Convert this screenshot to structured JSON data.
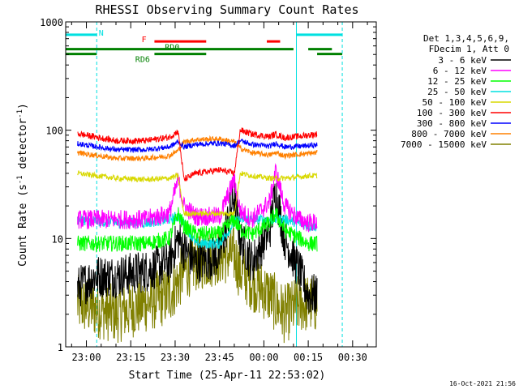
{
  "chart_data": {
    "type": "line",
    "title": "RHESSI Observing Summary Count Rates",
    "xlabel": "Start Time (25-Apr-11 22:53:02)",
    "ylabel_parts": [
      "Count Rate (s",
      "-1",
      " detector",
      "-1",
      ")"
    ],
    "yscale": "log",
    "ylim": [
      1,
      1000
    ],
    "xlim_min": [
      -7,
      98
    ],
    "y_ticks": [
      {
        "value": 1,
        "label": "1"
      },
      {
        "value": 10,
        "label": "10"
      },
      {
        "value": 100,
        "label": "100"
      },
      {
        "value": 1000,
        "label": "1000"
      }
    ],
    "x_ticks": [
      {
        "value": 0,
        "label": "23:00"
      },
      {
        "value": 15,
        "label": "23:15"
      },
      {
        "value": 30,
        "label": "23:30"
      },
      {
        "value": 45,
        "label": "23:45"
      },
      {
        "value": 60,
        "label": "00:00"
      },
      {
        "value": 75,
        "label": "00:15"
      },
      {
        "value": 90,
        "label": "00:30"
      }
    ],
    "time_axis_note": "x values are minutes after 23:00",
    "legend_header": [
      "Det 1,3,4,5,6,9,",
      "FDecim 1, Att 0"
    ],
    "legend_placement": "right, outside plot",
    "timestamp": "16-Oct-2021 21:56",
    "data_gap_lines": [
      -7,
      3.5,
      71,
      86.5
    ],
    "flag_bars": [
      {
        "name": "N",
        "color": "#00e0e0",
        "level": 760,
        "segments": [
          [
            -7,
            3.5
          ],
          [
            71,
            86.5
          ]
        ],
        "label_at": 5
      },
      {
        "name": "F",
        "color": "#ff0000",
        "level": 660,
        "segments": [
          [
            23,
            40.5
          ],
          [
            61,
            65.5
          ]
        ],
        "label_at": 19.5
      },
      {
        "name": "RD0",
        "color": "#008000",
        "level": 560,
        "segments": [
          [
            -7,
            70
          ],
          [
            75,
            83
          ]
        ],
        "label_at": 29
      },
      {
        "name": "RD6",
        "color": "#008000",
        "level": 505,
        "segments": [
          [
            -7,
            3.5
          ],
          [
            23,
            40.5
          ],
          [
            78,
            86.5
          ]
        ],
        "label_at": 19
      }
    ],
    "series": [
      {
        "name": "3 - 6 keV",
        "color": "#000000",
        "noise": 0.4,
        "points": [
          [
            -3,
            3.5
          ],
          [
            3,
            4.5
          ],
          [
            10,
            4.5
          ],
          [
            20,
            5
          ],
          [
            28,
            6
          ],
          [
            31,
            10
          ],
          [
            33,
            8
          ],
          [
            37,
            6
          ],
          [
            45,
            7
          ],
          [
            50,
            25
          ],
          [
            52,
            10
          ],
          [
            56,
            6
          ],
          [
            62,
            12
          ],
          [
            64,
            28
          ],
          [
            67,
            10
          ],
          [
            72,
            5
          ],
          [
            75,
            3
          ],
          [
            78,
            3
          ]
        ]
      },
      {
        "name": "6 - 12 keV",
        "color": "#ff00ff",
        "noise": 0.18,
        "points": [
          [
            -3,
            15
          ],
          [
            10,
            15
          ],
          [
            20,
            15
          ],
          [
            28,
            17
          ],
          [
            31,
            35
          ],
          [
            33,
            20
          ],
          [
            37,
            16
          ],
          [
            45,
            16
          ],
          [
            50,
            35
          ],
          [
            52,
            18
          ],
          [
            56,
            15
          ],
          [
            62,
            22
          ],
          [
            64,
            42
          ],
          [
            67,
            20
          ],
          [
            72,
            15
          ],
          [
            75,
            14
          ],
          [
            78,
            14
          ]
        ]
      },
      {
        "name": "12 - 25 keV",
        "color": "#00ff00",
        "noise": 0.15,
        "points": [
          [
            -3,
            9
          ],
          [
            10,
            9
          ],
          [
            20,
            9
          ],
          [
            28,
            10
          ],
          [
            31,
            17
          ],
          [
            33,
            13
          ],
          [
            37,
            11
          ],
          [
            45,
            11
          ],
          [
            50,
            15
          ],
          [
            52,
            12
          ],
          [
            56,
            11
          ],
          [
            62,
            14
          ],
          [
            64,
            17
          ],
          [
            67,
            12
          ],
          [
            72,
            10
          ],
          [
            75,
            9
          ],
          [
            78,
            9
          ]
        ]
      },
      {
        "name": "25 - 50 keV",
        "color": "#00e0e0",
        "noise": 0.1,
        "points": [
          [
            -3,
            15
          ],
          [
            10,
            14
          ],
          [
            20,
            14
          ],
          [
            28,
            15
          ],
          [
            31,
            16
          ],
          [
            33,
            14
          ],
          [
            37,
            9
          ],
          [
            45,
            9
          ],
          [
            50,
            14
          ],
          [
            52,
            15
          ],
          [
            56,
            15
          ],
          [
            62,
            15
          ],
          [
            64,
            15
          ],
          [
            67,
            15
          ],
          [
            72,
            14
          ],
          [
            75,
            13
          ],
          [
            78,
            13
          ]
        ]
      },
      {
        "name": "50 - 100 keV",
        "color": "#d8d800",
        "noise": 0.05,
        "points": [
          [
            -3,
            40
          ],
          [
            10,
            36
          ],
          [
            20,
            35
          ],
          [
            28,
            36
          ],
          [
            31,
            38
          ],
          [
            33,
            17
          ],
          [
            37,
            17
          ],
          [
            45,
            17
          ],
          [
            50,
            17
          ],
          [
            52,
            40
          ],
          [
            56,
            38
          ],
          [
            62,
            36
          ],
          [
            64,
            36
          ],
          [
            67,
            36
          ],
          [
            72,
            37
          ],
          [
            75,
            38
          ],
          [
            78,
            38
          ]
        ]
      },
      {
        "name": "100 - 300 keV",
        "color": "#ff0000",
        "noise": 0.06,
        "points": [
          [
            -3,
            93
          ],
          [
            10,
            80
          ],
          [
            20,
            80
          ],
          [
            28,
            86
          ],
          [
            31,
            98
          ],
          [
            33,
            35
          ],
          [
            37,
            40
          ],
          [
            45,
            43
          ],
          [
            50,
            40
          ],
          [
            52,
            100
          ],
          [
            56,
            92
          ],
          [
            62,
            87
          ],
          [
            64,
            92
          ],
          [
            67,
            85
          ],
          [
            72,
            88
          ],
          [
            75,
            90
          ],
          [
            78,
            92
          ]
        ]
      },
      {
        "name": "300 - 800 keV",
        "color": "#0000ff",
        "noise": 0.05,
        "points": [
          [
            -3,
            75
          ],
          [
            10,
            66
          ],
          [
            20,
            66
          ],
          [
            28,
            70
          ],
          [
            31,
            78
          ],
          [
            33,
            70
          ],
          [
            37,
            74
          ],
          [
            45,
            76
          ],
          [
            50,
            72
          ],
          [
            52,
            80
          ],
          [
            56,
            74
          ],
          [
            62,
            71
          ],
          [
            64,
            76
          ],
          [
            67,
            70
          ],
          [
            72,
            71
          ],
          [
            75,
            72
          ],
          [
            78,
            73
          ]
        ]
      },
      {
        "name": "800 - 7000 keV",
        "color": "#ff8000",
        "noise": 0.05,
        "points": [
          [
            -3,
            62
          ],
          [
            10,
            55
          ],
          [
            20,
            55
          ],
          [
            28,
            58
          ],
          [
            31,
            65
          ],
          [
            33,
            78
          ],
          [
            37,
            82
          ],
          [
            45,
            83
          ],
          [
            50,
            78
          ],
          [
            52,
            68
          ],
          [
            56,
            62
          ],
          [
            62,
            59
          ],
          [
            64,
            62
          ],
          [
            67,
            58
          ],
          [
            72,
            60
          ],
          [
            75,
            61
          ],
          [
            78,
            62
          ]
        ]
      },
      {
        "name": "7000 - 15000 keV",
        "color": "#808000",
        "noise": 0.55,
        "points": [
          [
            -3,
            2.5
          ],
          [
            10,
            2
          ],
          [
            20,
            2.5
          ],
          [
            28,
            3
          ],
          [
            31,
            4
          ],
          [
            33,
            5
          ],
          [
            37,
            6
          ],
          [
            45,
            7
          ],
          [
            50,
            7
          ],
          [
            52,
            5
          ],
          [
            56,
            4
          ],
          [
            62,
            3
          ],
          [
            64,
            2.5
          ],
          [
            67,
            2
          ],
          [
            72,
            2.5
          ],
          [
            75,
            2.5
          ],
          [
            78,
            2.5
          ]
        ]
      }
    ]
  }
}
